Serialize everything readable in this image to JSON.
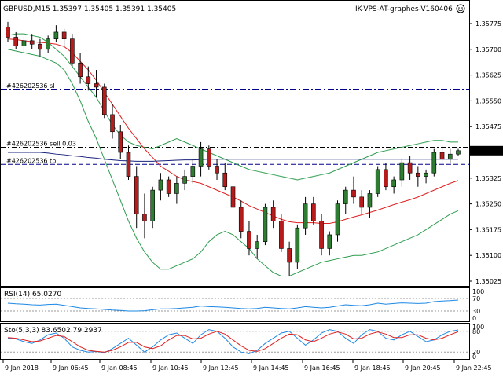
{
  "header": {
    "symbol_line": "GBPUSD,M15  1.35397 1.35405 1.35391 1.35405",
    "ea_name": "IK-VPS-AT-graphes-V160406",
    "smiley_icon": "smiley-icon"
  },
  "main_prices": [
    "1.35775",
    "1.35700",
    "1.35625",
    "1.35550",
    "1.35475",
    "1.35405",
    "1.35325",
    "1.35250",
    "1.35175",
    "1.35100",
    "1.35025"
  ],
  "current_price": "1.35405",
  "order_labels": [
    {
      "text": "#426202536 sl",
      "level": 1.35583
    },
    {
      "text": "#426202536 sell 0.03",
      "level": 1.35415
    },
    {
      "text": "#426202536 tp",
      "level": 1.35365
    }
  ],
  "rsi": {
    "label": "RSI(14) 65.0270",
    "levels": [
      "70",
      "30"
    ],
    "max": "100",
    "min": "0"
  },
  "stoch": {
    "label": "Sto(5,3,3) 83.6502 79.2937",
    "levels": [
      "80",
      "20"
    ],
    "max": "100",
    "min": "0"
  },
  "time_labels": [
    "9 Jan 2018",
    "9 Jan 06:45",
    "9 Jan 08:45",
    "9 Jan 10:45",
    "9 Jan 12:45",
    "9 Jan 14:45",
    "9 Jan 16:45",
    "9 Jan 18:45",
    "9 Jan 20:45",
    "9 Jan 22:45"
  ],
  "colors": {
    "bull": "#2e7d32",
    "bear": "#b71c1c",
    "bb": "#2e9d4f",
    "ma": "#e02020",
    "ma2": "#1a237e",
    "order": "#00008b",
    "rsi": "#1e88e5",
    "stoch_main": "#1e88e5",
    "stoch_signal": "#e02020"
  },
  "chart_data": {
    "type": "candlestick",
    "ylim": [
      1.35,
      1.3583
    ],
    "candles": [
      [
        1.35765,
        1.3578,
        1.3572,
        1.35735
      ],
      [
        1.35735,
        1.3575,
        1.357,
        1.3571
      ],
      [
        1.3571,
        1.35735,
        1.3569,
        1.35725
      ],
      [
        1.35725,
        1.35745,
        1.357,
        1.35715
      ],
      [
        1.35715,
        1.3573,
        1.3568,
        1.357
      ],
      [
        1.357,
        1.3574,
        1.3569,
        1.3573
      ],
      [
        1.3573,
        1.3577,
        1.3572,
        1.3575
      ],
      [
        1.3575,
        1.3576,
        1.3571,
        1.3573
      ],
      [
        1.3573,
        1.35745,
        1.3565,
        1.3566
      ],
      [
        1.3566,
        1.3569,
        1.356,
        1.3562
      ],
      [
        1.3562,
        1.3565,
        1.3558,
        1.356
      ],
      [
        1.356,
        1.3564,
        1.3556,
        1.3559
      ],
      [
        1.3559,
        1.356,
        1.355,
        1.3551
      ],
      [
        1.3551,
        1.3554,
        1.3544,
        1.3546
      ],
      [
        1.3546,
        1.3548,
        1.3538,
        1.354
      ],
      [
        1.354,
        1.3542,
        1.3532,
        1.3533
      ],
      [
        1.3533,
        1.3536,
        1.3518,
        1.3522
      ],
      [
        1.3522,
        1.3528,
        1.3515,
        1.352
      ],
      [
        1.352,
        1.353,
        1.3518,
        1.3529
      ],
      [
        1.3529,
        1.3534,
        1.3526,
        1.3532
      ],
      [
        1.3532,
        1.3533,
        1.3527,
        1.3528
      ],
      [
        1.3528,
        1.3533,
        1.3525,
        1.3531
      ],
      [
        1.3531,
        1.3535,
        1.3529,
        1.3533
      ],
      [
        1.3533,
        1.3538,
        1.3531,
        1.3536
      ],
      [
        1.3536,
        1.3543,
        1.3533,
        1.3541
      ],
      [
        1.3541,
        1.3542,
        1.3535,
        1.3536
      ],
      [
        1.3536,
        1.3538,
        1.3532,
        1.3534
      ],
      [
        1.3534,
        1.3537,
        1.3529,
        1.353
      ],
      [
        1.353,
        1.3532,
        1.3522,
        1.3524
      ],
      [
        1.3524,
        1.3526,
        1.3515,
        1.3517
      ],
      [
        1.3517,
        1.352,
        1.351,
        1.3512
      ],
      [
        1.3512,
        1.3516,
        1.3509,
        1.3514
      ],
      [
        1.3514,
        1.3525,
        1.3513,
        1.3524
      ],
      [
        1.3524,
        1.3526,
        1.3518,
        1.352
      ],
      [
        1.352,
        1.3522,
        1.3511,
        1.3512
      ],
      [
        1.3512,
        1.3514,
        1.3504,
        1.3508
      ],
      [
        1.3508,
        1.3519,
        1.3506,
        1.3518
      ],
      [
        1.3518,
        1.3527,
        1.3516,
        1.3525
      ],
      [
        1.3525,
        1.3527,
        1.3519,
        1.352
      ],
      [
        1.352,
        1.3522,
        1.351,
        1.3512
      ],
      [
        1.3512,
        1.3517,
        1.351,
        1.3516
      ],
      [
        1.3516,
        1.3526,
        1.3514,
        1.3525
      ],
      [
        1.3525,
        1.353,
        1.3522,
        1.3529
      ],
      [
        1.3529,
        1.3533,
        1.3525,
        1.3527
      ],
      [
        1.3527,
        1.3529,
        1.3522,
        1.3524
      ],
      [
        1.3524,
        1.3529,
        1.3521,
        1.3528
      ],
      [
        1.3528,
        1.3536,
        1.3527,
        1.3535
      ],
      [
        1.3535,
        1.3537,
        1.3529,
        1.353
      ],
      [
        1.353,
        1.3533,
        1.3528,
        1.3532
      ],
      [
        1.3532,
        1.3538,
        1.353,
        1.3537
      ],
      [
        1.3537,
        1.3539,
        1.3532,
        1.3534
      ],
      [
        1.3534,
        1.3536,
        1.353,
        1.3533
      ],
      [
        1.3533,
        1.3535,
        1.3531,
        1.3534
      ],
      [
        1.3534,
        1.3541,
        1.3533,
        1.354
      ],
      [
        1.354,
        1.3542,
        1.3537,
        1.3538
      ],
      [
        1.3538,
        1.3541,
        1.3537,
        1.35395
      ],
      [
        1.35395,
        1.3541,
        1.3539,
        1.35405
      ]
    ],
    "bb_upper": [
      1.3574,
      1.35745,
      1.35745,
      1.3574,
      1.35735,
      1.3572,
      1.357,
      1.3568,
      1.3565,
      1.3562,
      1.3559,
      1.3556,
      1.3552,
      1.3548,
      1.3545,
      1.3543,
      1.3542,
      1.35415,
      1.3541,
      1.3542,
      1.3543,
      1.3544,
      1.3543,
      1.3542,
      1.3541,
      1.354,
      1.3539,
      1.3538,
      1.3537,
      1.3536,
      1.3535,
      1.35345,
      1.3534,
      1.35335,
      1.3533,
      1.35325,
      1.3532,
      1.35325,
      1.3533,
      1.35335,
      1.3534,
      1.3535,
      1.3536,
      1.3537,
      1.3538,
      1.3539,
      1.354,
      1.35405,
      1.3541,
      1.35415,
      1.3542,
      1.35425,
      1.3543,
      1.35435,
      1.35435,
      1.3543,
      1.3543
    ],
    "bb_middle": [
      1.3572,
      1.3572,
      1.35718,
      1.35715,
      1.3571,
      1.357,
      1.3569,
      1.3567,
      1.3564,
      1.356,
      1.3556,
      1.3552,
      1.3548,
      1.3544,
      1.354,
      1.3537,
      1.3534,
      1.3531,
      1.3529,
      1.3528,
      1.35275,
      1.3527,
      1.3527,
      1.35275,
      1.35285,
      1.3529,
      1.3529,
      1.35285,
      1.35275,
      1.3526,
      1.35245,
      1.3523,
      1.3522,
      1.3521,
      1.352,
      1.35195,
      1.35195,
      1.352,
      1.35205,
      1.3521,
      1.35215,
      1.35225,
      1.35235,
      1.35245,
      1.3525,
      1.3526,
      1.3527,
      1.3528,
      1.3529,
      1.353,
      1.3531,
      1.3532,
      1.3533,
      1.3534,
      1.3535,
      1.3536,
      1.35365
    ],
    "bb_lower": [
      1.357,
      1.35695,
      1.3569,
      1.35685,
      1.3568,
      1.3567,
      1.3566,
      1.3564,
      1.356,
      1.3555,
      1.3549,
      1.3544,
      1.3538,
      1.3532,
      1.3526,
      1.352,
      1.3515,
      1.3511,
      1.3508,
      1.3506,
      1.3506,
      1.3507,
      1.3508,
      1.3509,
      1.3511,
      1.3514,
      1.3516,
      1.3517,
      1.3516,
      1.3514,
      1.3512,
      1.3509,
      1.3507,
      1.3505,
      1.3504,
      1.3504,
      1.3505,
      1.3506,
      1.3507,
      1.3508,
      1.35085,
      1.3509,
      1.35095,
      1.351,
      1.351,
      1.35105,
      1.3511,
      1.3512,
      1.3513,
      1.3514,
      1.3515,
      1.3516,
      1.35175,
      1.3519,
      1.35205,
      1.3522,
      1.3523
    ],
    "ma_red": [
      1.3573,
      1.35728,
      1.35725,
      1.35722,
      1.3572,
      1.35718,
      1.35715,
      1.35708,
      1.3569,
      1.35665,
      1.3564,
      1.3561,
      1.35575,
      1.3554,
      1.35505,
      1.3547,
      1.3544,
      1.3541,
      1.35385,
      1.3536,
      1.35345,
      1.3533,
      1.3532,
      1.35315,
      1.3531,
      1.353,
      1.3529,
      1.3528,
      1.3527,
      1.35258,
      1.35245,
      1.35235,
      1.35225,
      1.35215,
      1.35205,
      1.35198,
      1.35195,
      1.35195,
      1.35195,
      1.35193,
      1.35193,
      1.35198,
      1.35205,
      1.35212,
      1.35218,
      1.35225,
      1.35232,
      1.3524,
      1.35248,
      1.35255,
      1.35262,
      1.3527,
      1.3528,
      1.3529,
      1.353,
      1.3531,
      1.35318
    ],
    "ma_blue": [
      1.354,
      1.354,
      1.354,
      1.354,
      1.354,
      1.35398,
      1.35395,
      1.35393,
      1.3539,
      1.35388,
      1.35385,
      1.35383,
      1.3538,
      1.35378,
      1.35376,
      1.35375,
      1.35374,
      1.35374,
      1.35374,
      1.35375,
      1.35376,
      1.35377,
      1.35378,
      1.35378,
      1.35379,
      1.3538,
      1.3538,
      1.3538,
      1.3538,
      1.3538,
      1.3538,
      1.3538,
      1.3538,
      1.3538,
      1.3538,
      1.3538,
      1.3538,
      1.3538,
      1.3538,
      1.3538,
      1.3538,
      1.3538,
      1.3538,
      1.3538,
      1.3538,
      1.3538,
      1.3538,
      1.3538,
      1.3538,
      1.3538,
      1.3538,
      1.3538,
      1.3538,
      1.3538,
      1.3538,
      1.3538,
      1.3538
    ],
    "rsi": [
      55,
      53,
      52,
      50,
      49,
      51,
      52,
      48,
      44,
      40,
      38,
      37,
      35,
      33,
      32,
      30,
      30,
      31,
      34,
      37,
      37,
      38,
      40,
      42,
      46,
      44,
      43,
      42,
      40,
      38,
      37,
      38,
      42,
      40,
      38,
      37,
      40,
      44,
      42,
      40,
      42,
      46,
      50,
      48,
      47,
      50,
      55,
      52,
      54,
      56,
      55,
      54,
      55,
      60,
      62,
      63,
      65
    ],
    "stoch_main": [
      60,
      58,
      50,
      45,
      55,
      70,
      75,
      60,
      35,
      25,
      20,
      22,
      18,
      30,
      45,
      60,
      40,
      20,
      35,
      55,
      70,
      75,
      60,
      45,
      70,
      85,
      80,
      60,
      35,
      20,
      15,
      25,
      45,
      60,
      75,
      80,
      60,
      40,
      55,
      75,
      85,
      80,
      60,
      45,
      70,
      85,
      80,
      60,
      55,
      70,
      80,
      65,
      50,
      55,
      70,
      80,
      84
    ],
    "stoch_signal": [
      62,
      60,
      55,
      50,
      52,
      60,
      68,
      65,
      50,
      35,
      25,
      22,
      20,
      25,
      35,
      48,
      48,
      35,
      30,
      38,
      55,
      68,
      68,
      58,
      60,
      72,
      80,
      72,
      55,
      38,
      25,
      22,
      30,
      45,
      60,
      72,
      70,
      55,
      50,
      60,
      72,
      78,
      72,
      58,
      60,
      72,
      78,
      72,
      62,
      62,
      70,
      70,
      60,
      55,
      60,
      70,
      79
    ]
  }
}
